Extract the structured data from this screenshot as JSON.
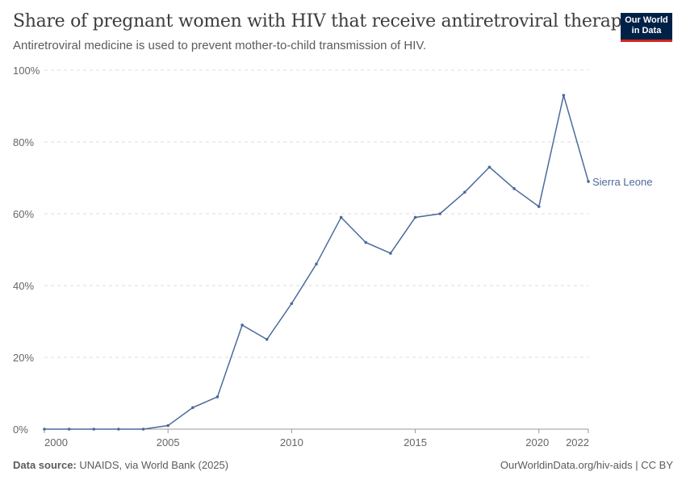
{
  "header": {
    "title": "Share of pregnant women with HIV that receive antiretroviral therapy",
    "subtitle": "Antiretroviral medicine is used to prevent mother-to-child transmission of HIV.",
    "logo": "Our World in Data"
  },
  "footer": {
    "source_label": "Data source:",
    "source": "UNAIDS, via World Bank (2025)",
    "credit": "OurWorldinData.org/hiv-aids | CC BY"
  },
  "chart_data": {
    "type": "line",
    "title": "Share of pregnant women with HIV that receive antiretroviral therapy",
    "xlim": [
      2000,
      2022
    ],
    "ylim": [
      0,
      100
    ],
    "grid": true,
    "xticks": [
      2000,
      2005,
      2010,
      2015,
      2020,
      2022
    ],
    "yticks": [
      "0%",
      "20%",
      "40%",
      "60%",
      "80%",
      "100%"
    ],
    "ytick_values": [
      0,
      20,
      40,
      60,
      80,
      100
    ],
    "series": [
      {
        "name": "Sierra Leone",
        "color": "#4c6a9c",
        "x": [
          2000,
          2001,
          2002,
          2003,
          2004,
          2005,
          2006,
          2007,
          2008,
          2009,
          2010,
          2011,
          2012,
          2013,
          2014,
          2015,
          2016,
          2017,
          2018,
          2019,
          2020,
          2021,
          2022
        ],
        "values": [
          0,
          0,
          0,
          0,
          0,
          1,
          6,
          9,
          29,
          25,
          35,
          46,
          59,
          52,
          49,
          59,
          60,
          66,
          73,
          67,
          62,
          93,
          69
        ]
      }
    ]
  }
}
